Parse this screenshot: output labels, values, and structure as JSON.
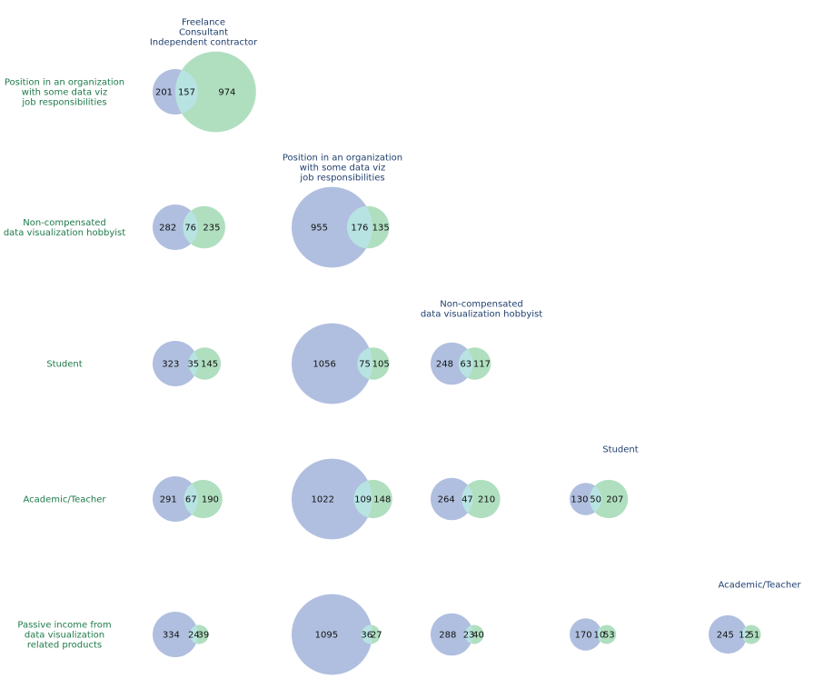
{
  "colors": {
    "set_a": "#b0bfdf",
    "set_b": "#b0dfbf",
    "intersection": "#b8e3e3",
    "row_label": "#1e7a4a",
    "column_label": "#1f3f6e"
  },
  "chart_data": {
    "type": "venn-matrix",
    "columns": [
      [
        "Freelance",
        "Consultant",
        "Independent contractor"
      ],
      [
        "Position in an organization",
        "with some data viz",
        "job responsibilities"
      ],
      [
        "Non-compensated",
        "data visualization hobbyist"
      ],
      [
        "Student"
      ],
      [
        "Academic/Teacher"
      ]
    ],
    "rows": [
      [
        "Position in an organization",
        "with some data viz",
        "job responsibilities"
      ],
      [
        "Non-compensated",
        "data visualization hobbyist"
      ],
      [
        "Student"
      ],
      [
        "Academic/Teacher"
      ],
      [
        "Passive income from",
        "data visualization",
        "related products"
      ]
    ],
    "cells": [
      [
        [
          201,
          157,
          974
        ]
      ],
      [
        [
          282,
          76,
          235
        ],
        [
          955,
          176,
          135
        ]
      ],
      [
        [
          323,
          35,
          145
        ],
        [
          1056,
          75,
          105
        ],
        [
          248,
          63,
          117
        ]
      ],
      [
        [
          291,
          67,
          190
        ],
        [
          1022,
          109,
          148
        ],
        [
          264,
          47,
          210
        ],
        [
          130,
          50,
          207
        ]
      ],
      [
        [
          334,
          24,
          39
        ],
        [
          1095,
          36,
          27
        ],
        [
          288,
          23,
          40
        ],
        [
          170,
          10,
          53
        ],
        [
          245,
          12,
          51
        ]
      ]
    ]
  }
}
